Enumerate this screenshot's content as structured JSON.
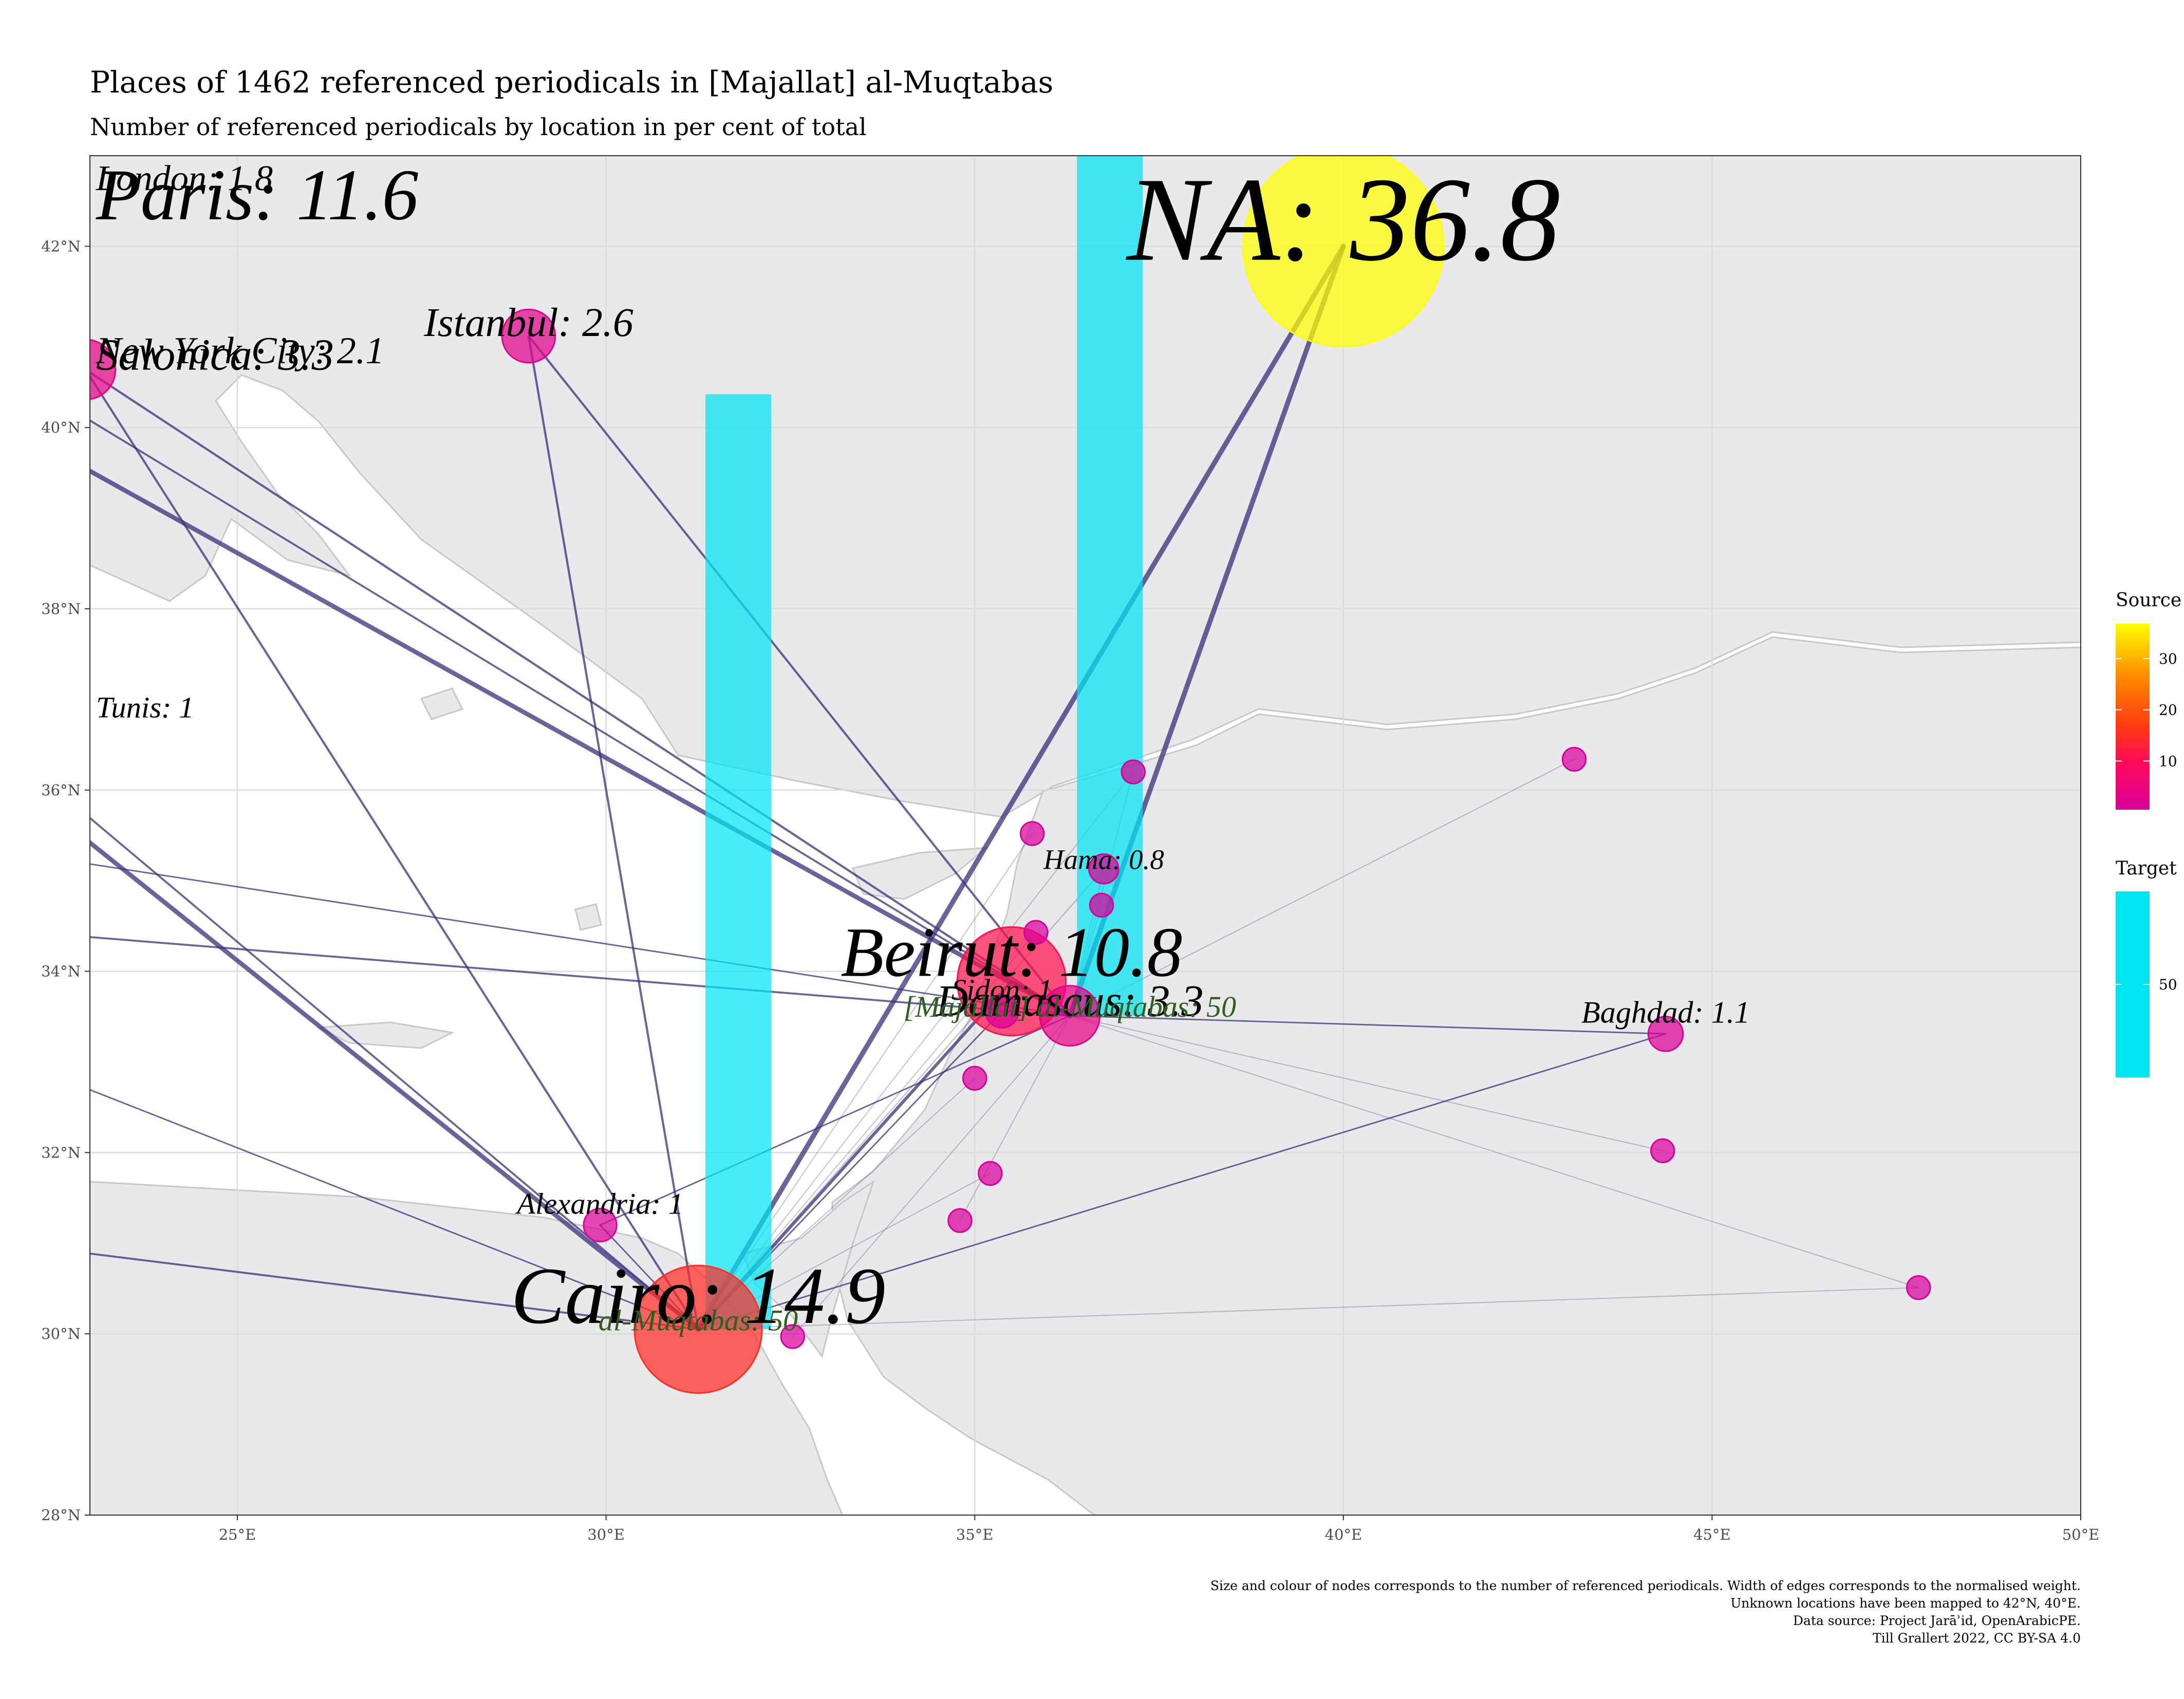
{
  "title": "Places of 1462 referenced periodicals in [Majallat] al-Muqtabas",
  "subtitle": "Number of referenced periodicals by location in per cent of total",
  "caption": [
    "Size and colour of nodes corresponds to the number of referenced periodicals. Width of edges corresponds to the normalised weight.",
    "Unknown locations have been mapped to 42°N, 40°E.",
    "Data source: Project Jarāʾid, OpenArabicPE.",
    "Till Grallert 2022, CC BY-SA 4.0"
  ],
  "colors": {
    "panel_bg": "#ffffff",
    "land": "#e9e8ea",
    "border": "#c8c7ca",
    "grid": "#dcdcdc",
    "edge": "#3b2f7a",
    "target_bar": "#00e5f2",
    "gradient_low": "#d8009c",
    "gradient_mid1": "#ff0a5a",
    "gradient_mid2": "#ff3a12",
    "gradient_mid3": "#ff8c00",
    "gradient_high": "#ffff00"
  },
  "chart_data": {
    "type": "scatter",
    "x_axis": {
      "unit": "°E",
      "range": [
        23,
        50
      ],
      "ticks": [
        25,
        30,
        35,
        40,
        45,
        50
      ],
      "tick_labels": [
        "25°E",
        "30°E",
        "35°E",
        "40°E",
        "45°E",
        "50°E"
      ]
    },
    "y_axis": {
      "unit": "°N",
      "range": [
        28,
        43
      ],
      "ticks": [
        28,
        30,
        32,
        34,
        36,
        38,
        40,
        42
      ],
      "tick_labels": [
        "28°N",
        "30°N",
        "32°N",
        "34°N",
        "36°N",
        "38°N",
        "40°N",
        "42°N"
      ]
    },
    "grid": true,
    "legend": {
      "placement": "right",
      "source": {
        "title": "Source",
        "range": [
          0.5,
          36.8
        ],
        "ticks": [
          10,
          20,
          30
        ],
        "tick_labels": [
          "10",
          "20",
          "30"
        ]
      },
      "target": {
        "title": "Target",
        "range": [
          40,
          60
        ],
        "ticks": [
          50
        ],
        "tick_labels": [
          "50"
        ]
      }
    },
    "source_nodes": [
      {
        "name": "NA",
        "label": "NA: 36.8",
        "lon": 40.0,
        "lat": 42.0,
        "value": 36.8
      },
      {
        "name": "Cairo",
        "label": "Cairo: 14.9",
        "lon": 31.25,
        "lat": 30.05,
        "value": 14.9
      },
      {
        "name": "Paris",
        "label": "Paris: 11.6",
        "lon": 2.35,
        "lat": 48.86,
        "value": 11.6
      },
      {
        "name": "Beirut",
        "label": "Beirut: 10.8",
        "lon": 35.5,
        "lat": 33.89,
        "value": 10.8
      },
      {
        "name": "Salonica",
        "label": "Salonica: 3.3",
        "lon": 22.94,
        "lat": 40.64,
        "value": 3.3
      },
      {
        "name": "Damascus",
        "label": "Damascus: 3.3",
        "lon": 36.29,
        "lat": 33.51,
        "value": 3.3
      },
      {
        "name": "Istanbul",
        "label": "Istanbul: 2.6",
        "lon": 28.95,
        "lat": 41.01,
        "value": 2.6
      },
      {
        "name": "New York City",
        "label": "New York City: 2.1",
        "lon": -74.0,
        "lat": 40.71,
        "value": 2.1
      },
      {
        "name": "London",
        "label": "London: 1.8",
        "lon": -0.13,
        "lat": 51.51,
        "value": 1.8
      },
      {
        "name": "Baghdad",
        "label": "Baghdad: 1.1",
        "lon": 44.37,
        "lat": 33.31,
        "value": 1.1
      },
      {
        "name": "Alexandria",
        "label": "Alexandria: 1",
        "lon": 29.92,
        "lat": 31.2,
        "value": 1.0
      },
      {
        "name": "Sidon",
        "label": "Sidon: 1",
        "lon": 35.37,
        "lat": 33.56,
        "value": 1.0
      },
      {
        "name": "Tunis",
        "label": "Tunis: 1",
        "lon": 10.18,
        "lat": 36.8,
        "value": 1.0
      },
      {
        "name": "Hama",
        "label": "Hama: 0.8",
        "lon": 36.75,
        "lat": 35.13,
        "value": 0.8
      },
      {
        "name": "Aleppo",
        "label": "",
        "lon": 37.15,
        "lat": 36.2,
        "value": 0.5
      },
      {
        "name": "Mosul",
        "label": "",
        "lon": 43.13,
        "lat": 36.34,
        "value": 0.5
      },
      {
        "name": "Najaf",
        "label": "",
        "lon": 44.33,
        "lat": 32.02,
        "value": 0.5
      },
      {
        "name": "Basra",
        "label": "",
        "lon": 47.8,
        "lat": 30.51,
        "value": 0.5
      },
      {
        "name": "Jerusalem",
        "label": "",
        "lon": 35.21,
        "lat": 31.77,
        "value": 0.5
      },
      {
        "name": "Haifa",
        "label": "",
        "lon": 35.0,
        "lat": 32.82,
        "value": 0.5
      },
      {
        "name": "Tripoli",
        "label": "",
        "lon": 35.83,
        "lat": 34.43,
        "value": 0.5
      },
      {
        "name": "Latakia",
        "label": "",
        "lon": 35.78,
        "lat": 35.52,
        "value": 0.5
      },
      {
        "name": "Homs",
        "label": "",
        "lon": 36.72,
        "lat": 34.73,
        "value": 0.5
      },
      {
        "name": "Suez",
        "label": "",
        "lon": 32.53,
        "lat": 29.97,
        "value": 0.5
      },
      {
        "name": "Gaza",
        "label": "",
        "lon": 34.8,
        "lat": 31.25,
        "value": 0.5
      }
    ],
    "target_nodes": [
      {
        "name": "al-Muqtabas Cairo",
        "label": "al-Muqtabas: 50",
        "lon": 31.25,
        "lat": 30.05,
        "value": 50
      },
      {
        "name": "Majallat al-Muqtabas Damascus",
        "label": "[Majallat] al-Muqtabas: 50",
        "lon": 36.29,
        "lat": 33.51,
        "value": 50
      }
    ],
    "edges": [
      {
        "from": "NA",
        "to": "Cairo",
        "weight": 0.9
      },
      {
        "from": "NA",
        "to": "Damascus",
        "weight": 0.9
      },
      {
        "from": "Paris",
        "to": "Cairo",
        "weight": 0.8
      },
      {
        "from": "Paris",
        "to": "Damascus",
        "weight": 0.8
      },
      {
        "from": "Beirut",
        "to": "Cairo",
        "weight": 0.5
      },
      {
        "from": "Beirut",
        "to": "Damascus",
        "weight": 0.5
      },
      {
        "from": "Istanbul",
        "to": "Cairo",
        "weight": 0.3
      },
      {
        "from": "Istanbul",
        "to": "Damascus",
        "weight": 0.3
      },
      {
        "from": "Salonica",
        "to": "Cairo",
        "weight": 0.3
      },
      {
        "from": "Salonica",
        "to": "Damascus",
        "weight": 0.3
      },
      {
        "from": "New York City",
        "to": "Cairo",
        "weight": 0.25
      },
      {
        "from": "New York City",
        "to": "Damascus",
        "weight": 0.25
      },
      {
        "from": "London",
        "to": "Cairo",
        "weight": 0.25
      },
      {
        "from": "London",
        "to": "Damascus",
        "weight": 0.25
      },
      {
        "from": "Baghdad",
        "to": "Cairo",
        "weight": 0.15
      },
      {
        "from": "Baghdad",
        "to": "Damascus",
        "weight": 0.15
      },
      {
        "from": "Alexandria",
        "to": "Cairo",
        "weight": 0.15
      },
      {
        "from": "Alexandria",
        "to": "Damascus",
        "weight": 0.15
      },
      {
        "from": "Tunis",
        "to": "Cairo",
        "weight": 0.15
      },
      {
        "from": "Tunis",
        "to": "Damascus",
        "weight": 0.15
      },
      {
        "from": "Sidon",
        "to": "Cairo",
        "weight": 0.15
      },
      {
        "from": "Sidon",
        "to": "Damascus",
        "weight": 0.15
      },
      {
        "from": "Hama",
        "to": "Cairo",
        "weight": 0.1
      },
      {
        "from": "Hama",
        "to": "Damascus",
        "weight": 0.1
      },
      {
        "from": "Aleppo",
        "to": "Cairo",
        "weight": 0.05
      },
      {
        "from": "Aleppo",
        "to": "Damascus",
        "weight": 0.05
      },
      {
        "from": "Mosul",
        "to": "Damascus",
        "weight": 0.05
      },
      {
        "from": "Najaf",
        "to": "Damascus",
        "weight": 0.05
      },
      {
        "from": "Basra",
        "to": "Cairo",
        "weight": 0.05
      },
      {
        "from": "Basra",
        "to": "Damascus",
        "weight": 0.05
      },
      {
        "from": "Jerusalem",
        "to": "Cairo",
        "weight": 0.05
      },
      {
        "from": "Haifa",
        "to": "Cairo",
        "weight": 0.05
      },
      {
        "from": "Tripoli",
        "to": "Cairo",
        "weight": 0.05
      },
      {
        "from": "Latakia",
        "to": "Cairo",
        "weight": 0.05
      },
      {
        "from": "Homs",
        "to": "Damascus",
        "weight": 0.05
      },
      {
        "from": "Suez",
        "to": "Damascus",
        "weight": 0.05
      },
      {
        "from": "Gaza",
        "to": "Damascus",
        "weight": 0.05
      }
    ]
  }
}
